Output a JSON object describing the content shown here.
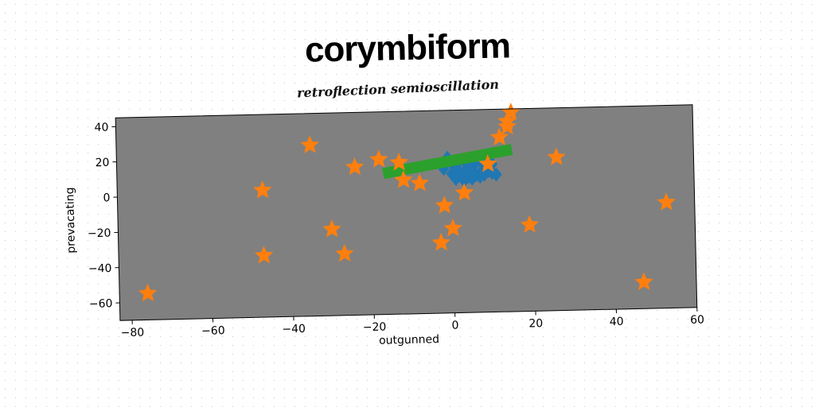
{
  "chart_data": {
    "type": "scatter",
    "title": "corymbiform",
    "subtitle": "retroflection semioscillation",
    "xlabel": "outgunned",
    "ylabel": "prevacating",
    "xlim": [
      -83,
      60
    ],
    "ylim": [
      -70,
      45
    ],
    "xticks": [
      -80,
      -60,
      -40,
      -20,
      0,
      20,
      40,
      60
    ],
    "yticks": [
      -60,
      -40,
      -20,
      0,
      20,
      40
    ],
    "background": "#808080",
    "series": [
      {
        "marker": "diamond",
        "color": "#1f77b4",
        "points": [
          [
            -1,
            18
          ],
          [
            0,
            15
          ],
          [
            1,
            12
          ],
          [
            2,
            16
          ],
          [
            3,
            10
          ],
          [
            4,
            14
          ],
          [
            5,
            11
          ],
          [
            6,
            15
          ],
          [
            7,
            9
          ],
          [
            8,
            13
          ],
          [
            9,
            10
          ],
          [
            10,
            14
          ],
          [
            -2,
            12
          ],
          [
            0,
            9
          ],
          [
            2,
            8
          ],
          [
            4,
            7
          ],
          [
            6,
            8
          ],
          [
            8,
            8
          ],
          [
            10,
            9
          ],
          [
            1,
            6
          ],
          [
            3,
            5
          ],
          [
            5,
            6
          ],
          [
            7,
            7
          ],
          [
            9,
            11
          ],
          [
            11,
            8
          ]
        ]
      },
      {
        "marker": "line",
        "color": "#2ca02c",
        "points": [
          [
            -17,
            10
          ],
          [
            15,
            22
          ]
        ]
      },
      {
        "marker": "star",
        "color": "#ff7f0e",
        "points": [
          [
            -76,
            -55
          ],
          [
            -47,
            -35
          ],
          [
            -47,
            2
          ],
          [
            -35,
            27
          ],
          [
            -30,
            -21
          ],
          [
            -27,
            -35
          ],
          [
            -24,
            14
          ],
          [
            -18,
            18
          ],
          [
            -13,
            16
          ],
          [
            -12,
            6
          ],
          [
            -8,
            4
          ],
          [
            -3,
            -30
          ],
          [
            -2,
            -9
          ],
          [
            0,
            -22
          ],
          [
            3,
            -2
          ],
          [
            9,
            14
          ],
          [
            12,
            29
          ],
          [
            14,
            35
          ],
          [
            14,
            38
          ],
          [
            15,
            43
          ],
          [
            19,
            -21
          ],
          [
            26,
            17
          ],
          [
            47,
            -55
          ],
          [
            53,
            -10
          ]
        ]
      }
    ]
  }
}
